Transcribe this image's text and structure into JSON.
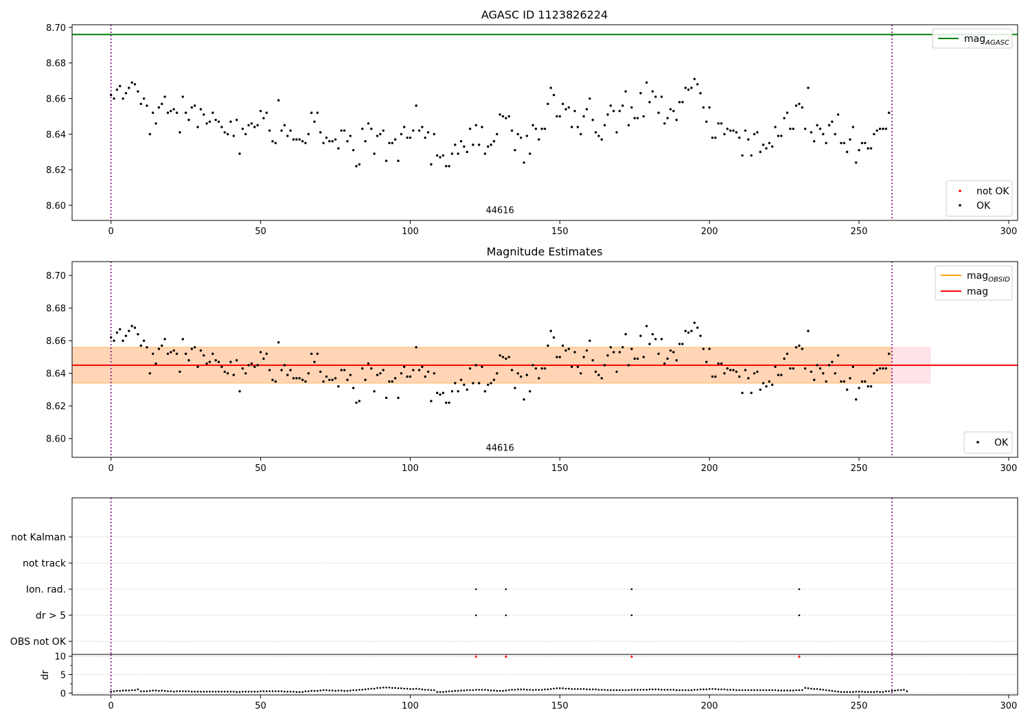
{
  "chart_data": [
    {
      "type": "scatter",
      "title": "AGASC ID 1123826224",
      "xlim": [
        -13,
        303
      ],
      "ylim": [
        8.5915,
        8.7015
      ],
      "xticks": [
        0,
        50,
        100,
        150,
        200,
        250,
        300
      ],
      "yticks": [
        8.6,
        8.62,
        8.64,
        8.66,
        8.68,
        8.7
      ],
      "ytick_labels": [
        "8.60",
        "8.62",
        "8.64",
        "8.66",
        "8.68",
        "8.70"
      ],
      "hlines": [
        {
          "name_base": "mag",
          "name_sub": "AGASC",
          "y": 8.696,
          "color": "#008000"
        }
      ],
      "vlines": [
        0,
        261
      ],
      "vline_color": "#800080",
      "annotation": {
        "text": "44616",
        "x": 130,
        "y": 8.5955
      },
      "legend_upper": "top-right",
      "legend_lower": "bottom-right",
      "legend_scatter": [
        {
          "label": "not OK",
          "color": "#ff0000"
        },
        {
          "label": "OK",
          "color": "#000000"
        }
      ]
    },
    {
      "type": "scatter",
      "title": "Magnitude Estimates",
      "xlim": [
        -13,
        303
      ],
      "ylim": [
        8.5885,
        8.7085
      ],
      "xticks": [
        0,
        50,
        100,
        150,
        200,
        250,
        300
      ],
      "yticks": [
        8.6,
        8.62,
        8.64,
        8.66,
        8.68,
        8.7
      ],
      "ytick_labels": [
        "8.60",
        "8.62",
        "8.64",
        "8.66",
        "8.68",
        "8.70"
      ],
      "hlines": [
        {
          "name_base": "mag",
          "name_sub": "OBSID",
          "y": 8.645,
          "color": "#ffa500"
        },
        {
          "name_base": "mag",
          "name_sub": "",
          "y": 8.645,
          "color": "#ff0000"
        }
      ],
      "bands": [
        {
          "y0": 8.634,
          "y1": 8.656,
          "x0": -13,
          "x1": 274,
          "color": "#ffc0cb",
          "opacity": 0.45
        },
        {
          "y0": 8.634,
          "y1": 8.656,
          "x0": -13,
          "x1": 261,
          "color": "#ffa500",
          "opacity": 0.22
        }
      ],
      "vlines": [
        0,
        261
      ],
      "vline_color": "#800080",
      "annotation": {
        "text": "44616",
        "x": 130,
        "y": 8.5925
      },
      "legend_upper": "top-right",
      "legend_lower": "bottom-right",
      "legend_scatter": [
        {
          "label": "OK",
          "color": "#000000"
        }
      ]
    },
    {
      "type": "scatter",
      "title": "",
      "xlim": [
        -13,
        303
      ],
      "ylim": [
        -0.5,
        5.5
      ],
      "categories": [
        "OBS not OK",
        "dr > 5",
        "Ion. rad.",
        "not track",
        "not Kalman"
      ],
      "flags": [
        {
          "category": "Ion. rad.",
          "x": [
            122,
            132,
            174,
            230
          ]
        },
        {
          "category": "dr > 5",
          "x": [
            122,
            132,
            174,
            230
          ]
        }
      ],
      "vlines": [
        0,
        261
      ],
      "vline_color": "#800080"
    },
    {
      "type": "scatter",
      "title": "",
      "ylabel": "dr",
      "xlim": [
        -13,
        303
      ],
      "ylim": [
        -0.5,
        10.5
      ],
      "xticks": [
        0,
        50,
        100,
        150,
        200,
        250,
        300
      ],
      "yticks": [
        0,
        5,
        10
      ],
      "ytick_labels": [
        "0",
        "5",
        "10"
      ],
      "clip_marker": {
        "y": 10,
        "x": [
          122,
          132,
          174,
          230
        ],
        "color": "#ff0000"
      },
      "vlines": [
        0,
        261
      ],
      "vline_color": "#800080"
    }
  ],
  "series": {
    "start": 0,
    "mag": [
      8.662,
      8.66,
      8.665,
      8.667,
      8.66,
      8.663,
      8.666,
      8.669,
      8.668,
      8.664,
      8.657,
      8.66,
      8.656,
      8.64,
      8.652,
      8.646,
      8.655,
      8.657,
      8.661,
      8.652,
      8.653,
      8.654,
      8.652,
      8.641,
      8.661,
      8.652,
      8.648,
      8.655,
      8.656,
      8.644,
      8.654,
      8.651,
      8.646,
      8.647,
      8.652,
      8.648,
      8.647,
      8.644,
      8.641,
      8.64,
      8.647,
      8.639,
      8.648,
      8.629,
      8.643,
      8.64,
      8.645,
      8.646,
      8.644,
      8.645,
      8.653,
      8.649,
      8.652,
      8.642,
      8.636,
      8.635,
      8.659,
      8.642,
      8.645,
      8.639,
      8.642,
      8.637,
      8.637,
      8.637,
      8.636,
      8.635,
      8.64,
      8.652,
      8.647,
      8.652,
      8.641,
      8.635,
      8.638,
      8.636,
      8.636,
      8.637,
      8.632,
      8.642,
      8.642,
      8.636,
      8.639,
      8.631,
      8.622,
      8.623,
      8.643,
      8.636,
      8.646,
      8.643,
      8.629,
      8.639,
      8.64,
      8.642,
      8.625,
      8.635,
      8.635,
      8.637,
      8.625,
      8.64,
      8.644,
      8.638,
      8.638,
      8.642,
      8.656,
      8.642,
      8.644,
      8.638,
      8.641,
      8.623,
      8.64,
      8.628,
      8.627,
      8.628,
      8.622,
      8.622,
      8.629,
      8.634,
      8.629,
      8.636,
      8.633,
      8.63,
      8.643,
      8.634,
      8.645,
      8.634,
      8.644,
      8.629,
      8.633,
      8.634,
      8.636,
      8.64,
      8.651,
      8.65,
      8.649,
      8.65,
      8.642,
      8.631,
      8.64,
      8.638,
      8.624,
      8.639,
      8.629,
      8.645,
      8.643,
      8.637,
      8.643,
      8.643,
      8.657,
      8.666,
      8.662,
      8.65,
      8.65,
      8.657,
      8.654,
      8.655,
      8.644,
      8.653,
      8.644,
      8.64,
      8.65,
      8.654,
      8.66,
      8.648,
      8.641,
      8.639,
      8.637,
      8.645,
      8.651,
      8.656,
      8.653,
      8.641,
      8.653,
      8.656,
      8.664,
      8.645,
      8.655,
      8.649,
      8.649,
      8.663,
      8.65,
      8.669,
      8.658,
      8.664,
      8.661,
      8.652,
      8.661,
      8.646,
      8.649,
      8.654,
      8.653,
      8.648,
      8.658,
      8.658,
      8.666,
      8.665,
      8.666,
      8.671,
      8.668,
      8.663,
      8.655,
      8.647,
      8.655,
      8.638,
      8.638,
      8.646,
      8.646,
      8.64,
      8.643,
      8.642,
      8.642,
      8.641,
      8.638,
      8.628,
      8.642,
      8.637,
      8.628,
      8.64,
      8.641,
      8.63,
      8.634,
      8.632,
      8.635,
      8.633,
      8.644,
      8.639,
      8.639,
      8.649,
      8.652,
      8.643,
      8.643,
      8.656,
      8.657,
      8.655,
      8.643,
      8.666,
      8.641,
      8.636,
      8.645,
      8.643,
      8.64,
      8.635,
      8.645,
      8.647,
      8.64,
      8.651,
      8.635,
      8.635,
      8.63,
      8.637,
      8.644,
      8.624,
      8.631,
      8.635,
      8.635,
      8.632,
      8.632,
      8.64,
      8.642,
      8.643,
      8.643,
      8.643,
      8.652
    ],
    "dr": [
      0.4,
      0.5,
      0.6,
      0.6,
      0.7,
      0.7,
      0.7,
      0.8,
      0.8,
      1.0,
      0.5,
      0.5,
      0.5,
      0.6,
      0.7,
      0.7,
      0.6,
      0.7,
      0.6,
      0.5,
      0.5,
      0.4,
      0.5,
      0.5,
      0.5,
      0.5,
      0.5,
      0.4,
      0.4,
      0.4,
      0.4,
      0.4,
      0.4,
      0.4,
      0.4,
      0.4,
      0.4,
      0.4,
      0.4,
      0.4,
      0.4,
      0.4,
      0.3,
      0.3,
      0.4,
      0.4,
      0.4,
      0.4,
      0.4,
      0.4,
      0.5,
      0.5,
      0.5,
      0.5,
      0.5,
      0.5,
      0.5,
      0.5,
      0.4,
      0.4,
      0.4,
      0.4,
      0.3,
      0.3,
      0.3,
      0.5,
      0.5,
      0.6,
      0.6,
      0.6,
      0.7,
      0.8,
      0.8,
      0.7,
      0.7,
      0.6,
      0.7,
      0.7,
      0.6,
      0.6,
      0.7,
      0.8,
      0.8,
      0.9,
      0.9,
      1.0,
      1.1,
      1.2,
      1.2,
      1.4,
      1.4,
      1.5,
      1.5,
      1.5,
      1.4,
      1.4,
      1.3,
      1.3,
      1.2,
      1.2,
      1.1,
      1.1,
      1.2,
      1.1,
      1.0,
      0.9,
      0.9,
      0.8,
      0.8,
      0.3,
      0.3,
      0.3,
      0.4,
      0.5,
      0.5,
      0.6,
      0.6,
      0.7,
      0.7,
      0.8,
      0.8,
      0.8,
      0.9,
      0.9,
      0.9,
      0.9,
      0.8,
      0.7,
      0.7,
      0.6,
      0.6,
      0.6,
      0.7,
      0.8,
      0.9,
      0.9,
      1.0,
      1.0,
      1.0,
      0.9,
      0.9,
      0.8,
      0.9,
      0.9,
      0.9,
      1.0,
      1.0,
      1.1,
      1.2,
      1.3,
      1.3,
      1.3,
      1.2,
      1.2,
      1.1,
      1.1,
      1.1,
      1.1,
      1.1,
      1.0,
      1.0,
      1.0,
      1.0,
      0.9,
      0.9,
      0.9,
      0.8,
      0.8,
      0.8,
      0.8,
      0.8,
      0.8,
      0.8,
      0.8,
      0.9,
      0.9,
      0.9,
      0.9,
      0.9,
      0.9,
      1.0,
      1.0,
      1.0,
      1.0,
      0.9,
      0.9,
      0.9,
      0.9,
      0.9,
      0.8,
      0.8,
      0.8,
      0.8,
      0.8,
      0.8,
      0.9,
      0.9,
      1.0,
      1.0,
      1.0,
      1.1,
      1.1,
      1.1,
      1.0,
      1.0,
      1.0,
      0.9,
      0.9,
      0.9,
      0.8,
      0.8,
      0.8,
      0.8,
      0.8,
      0.8,
      0.8,
      0.8,
      0.8,
      0.8,
      0.8,
      0.8,
      0.8,
      0.8,
      0.7,
      0.7,
      0.7,
      0.7,
      0.7,
      0.7,
      0.8,
      0.8,
      0.8,
      1.4,
      1.3,
      1.2,
      1.1,
      1.1,
      1.0,
      0.9,
      0.8,
      0.7,
      0.6,
      0.5,
      0.4,
      0.3,
      0.3,
      0.3,
      0.3,
      0.3,
      0.4,
      0.4,
      0.4,
      0.3,
      0.3,
      0.3,
      0.3,
      0.4,
      0.3,
      0.3,
      0.5,
      0.5,
      0.6,
      0.7,
      0.8,
      0.8,
      0.9,
      0.5
    ]
  }
}
